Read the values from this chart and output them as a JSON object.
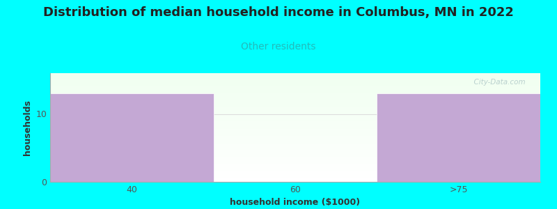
{
  "title": "Distribution of median household income in Columbus, MN in 2022",
  "subtitle": "Other residents",
  "xlabel": "household income ($1000)",
  "ylabel": "households",
  "background_color": "#00ffff",
  "bar_categories": [
    "40",
    "60",
    ">75"
  ],
  "bar_values": [
    13,
    0,
    13
  ],
  "bar_color": "#c4a8d4",
  "bar_edge_color": "#ffffff",
  "yticks": [
    0,
    10
  ],
  "ylim": [
    0,
    16
  ],
  "title_fontsize": 13,
  "subtitle_fontsize": 10,
  "subtitle_color": "#22bbbb",
  "axis_label_fontsize": 9,
  "tick_fontsize": 9,
  "tick_color": "#555555",
  "watermark": "  City-Data.com",
  "grid_color": "#dddddd",
  "plot_bg_top": "#edfaed",
  "plot_bg_bottom": "#ffffff"
}
